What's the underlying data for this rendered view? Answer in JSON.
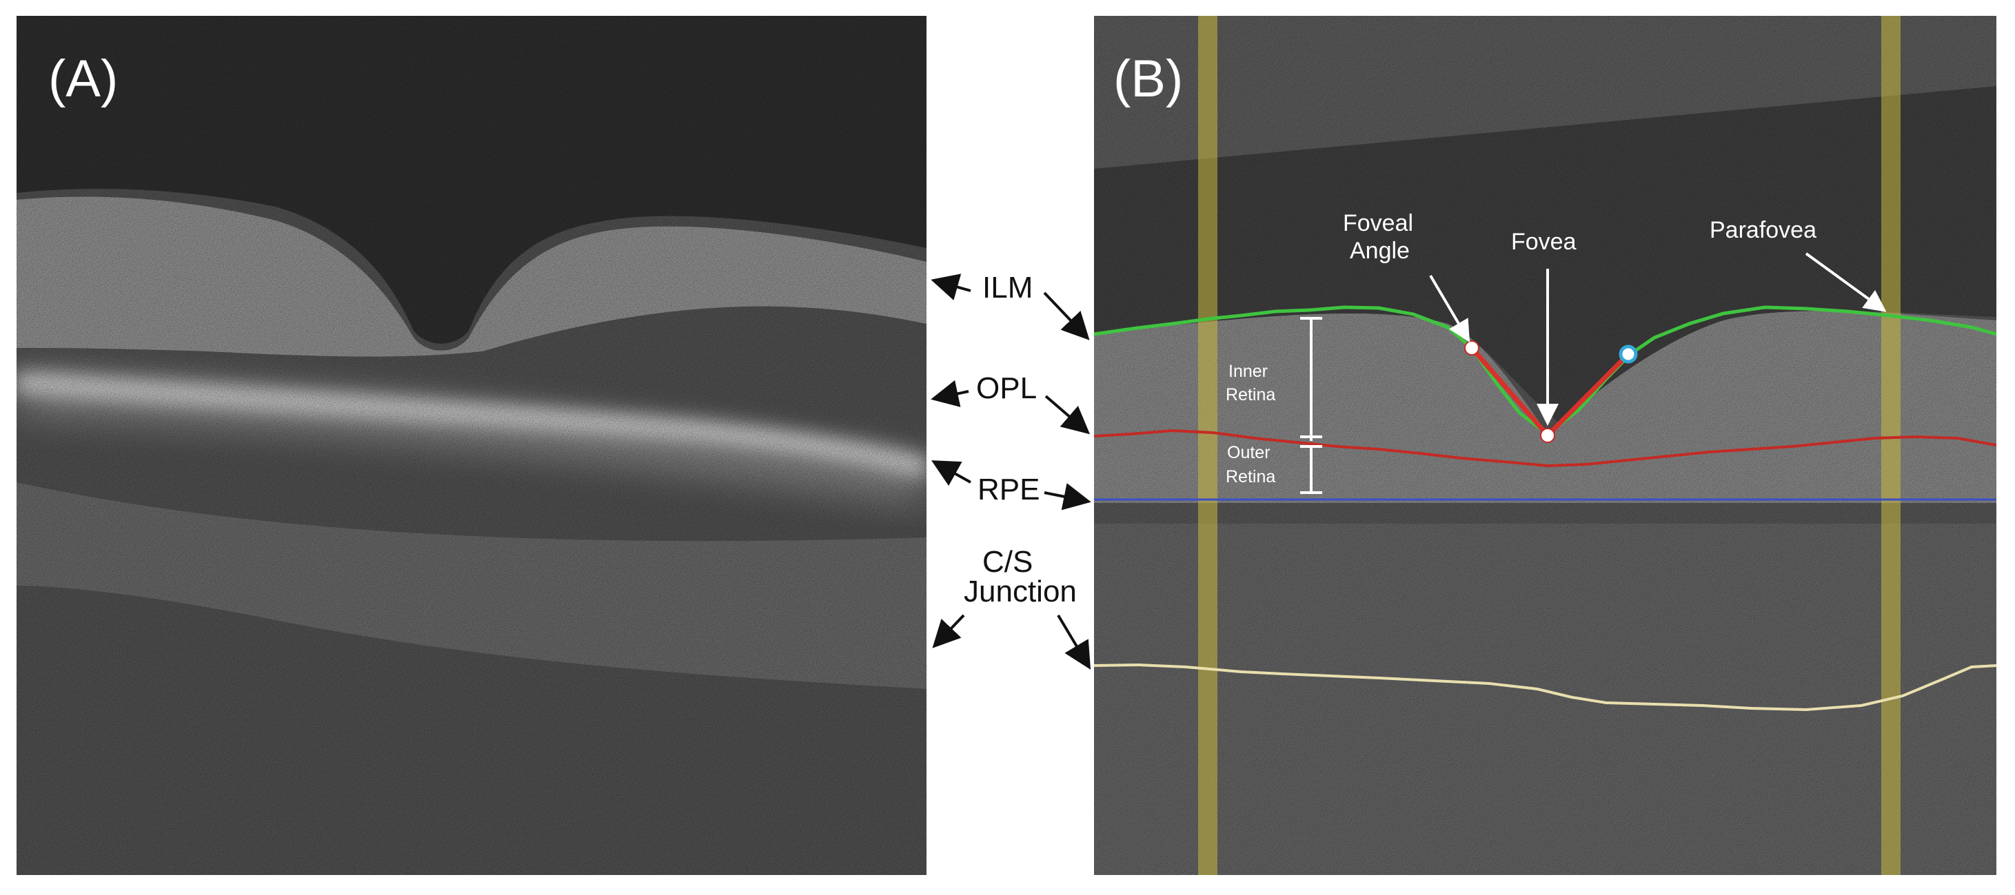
{
  "panels": {
    "a": {
      "label": "(A)"
    },
    "b": {
      "label": "(B)"
    }
  },
  "layers": {
    "ilm": "ILM",
    "opl": "OPL",
    "rpe": "RPE",
    "cs_line1": "C/S",
    "cs_line2": "Junction"
  },
  "annotations": {
    "foveal_angle_line1": "Foveal",
    "foveal_angle_line2": "Angle",
    "fovea": "Fovea",
    "parafovea": "Parafovea",
    "inner_retina_line1": "Inner",
    "inner_retina_line2": "Retina",
    "outer_retina_line1": "Outer",
    "outer_retina_line2": "Retina"
  },
  "colors": {
    "ilm_trace": "#3fc43f",
    "opl_trace": "#c42a24",
    "rpe_trace": "#3a4fc8",
    "cs_trace": "#e9dfae",
    "parafovea_band": "#c9b83e",
    "foveal_angle_lines": "#d8312b",
    "angle_point_left": "#ffffff",
    "angle_point_right": "#34a8d8"
  }
}
